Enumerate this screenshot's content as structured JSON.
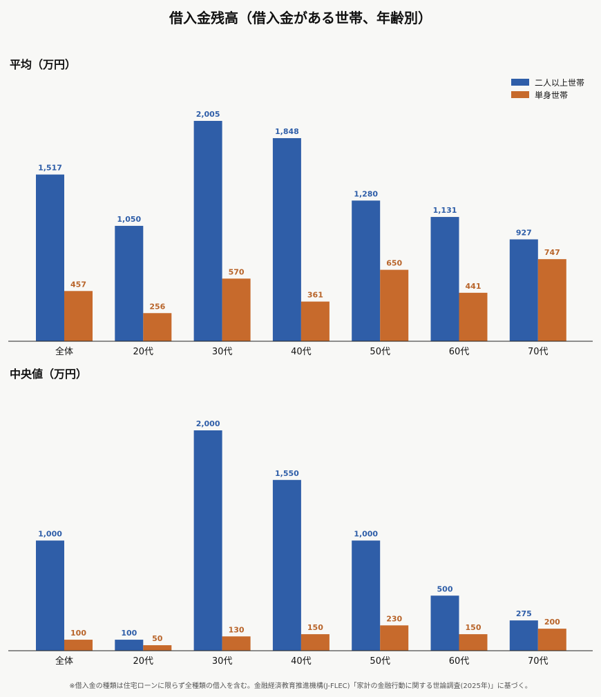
{
  "title": "借入金残高（借入金がある世帯、年齢別）",
  "legend": {
    "series1": "二人以上世帯",
    "series2": "単身世帯"
  },
  "colors": {
    "series1": "#2f5ea8",
    "series2": "#c76a2c"
  },
  "footnote": "※借入金の種類は住宅ローンに限らず全種類の借入を含む。金融経済教育推進機構(J-FLEC)「家計の金融行動に関する世論調査(2025年)」に基づく。",
  "chart_data": [
    {
      "type": "bar",
      "title": "平均（万円）",
      "categories": [
        "全体",
        "20代",
        "30代",
        "40代",
        "50代",
        "60代",
        "70代"
      ],
      "series": [
        {
          "name": "二人以上世帯",
          "values": [
            1517,
            1050,
            2005,
            1848,
            1280,
            1131,
            927
          ]
        },
        {
          "name": "単身世帯",
          "values": [
            457,
            256,
            570,
            361,
            650,
            441,
            747
          ]
        }
      ],
      "ylim": [
        0,
        2005
      ],
      "grid": false,
      "legend_position": "top-right"
    },
    {
      "type": "bar",
      "title": "中央値（万円）",
      "categories": [
        "全体",
        "20代",
        "30代",
        "40代",
        "50代",
        "60代",
        "70代"
      ],
      "series": [
        {
          "name": "二人以上世帯",
          "values": [
            1000,
            100,
            2000,
            1550,
            1000,
            500,
            275
          ]
        },
        {
          "name": "単身世帯",
          "values": [
            100,
            50,
            130,
            150,
            230,
            150,
            200
          ]
        }
      ],
      "ylim": [
        0,
        2000
      ],
      "grid": false
    }
  ]
}
